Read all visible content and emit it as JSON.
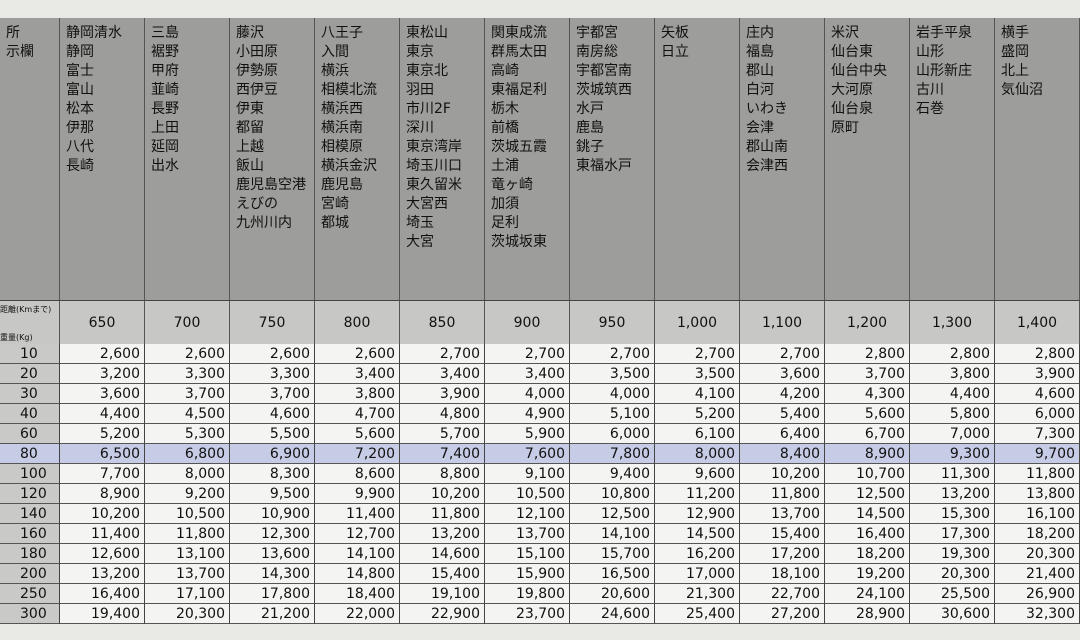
{
  "header": {
    "corner_lines": [
      "所",
      "示欄"
    ],
    "distance_label": "距離(Kmまで)",
    "weight_label": "重量(Kg)"
  },
  "columns": [
    {
      "areas": [
        "静岡清水",
        "静岡",
        "富士",
        "富山",
        "松本",
        "伊那",
        "八代",
        "長崎"
      ],
      "distance": "650"
    },
    {
      "areas": [
        "三島",
        "裾野",
        "甲府",
        "韮崎",
        "長野",
        "上田",
        "延岡",
        "出水"
      ],
      "distance": "700"
    },
    {
      "areas": [
        "藤沢",
        "小田原",
        "伊勢原",
        "西伊豆",
        "伊東",
        "都留",
        "上越",
        "飯山",
        "鹿児島空港",
        "えびの",
        "九州川内"
      ],
      "distance": "750"
    },
    {
      "areas": [
        "八王子",
        "入間",
        "横浜",
        "相模北流",
        "横浜西",
        "横浜南",
        "相模原",
        "横浜金沢",
        "鹿児島",
        "宮崎",
        "都城"
      ],
      "distance": "800"
    },
    {
      "areas": [
        "東松山",
        "東京",
        "東京北",
        "羽田",
        "市川2F",
        "深川",
        "東京湾岸",
        "埼玉川口",
        "東久留米",
        "大宮西",
        "埼玉",
        "大宮"
      ],
      "distance": "850"
    },
    {
      "areas": [
        "関東成流",
        "群馬太田",
        "高崎",
        "東福足利",
        "栃木",
        "前橋",
        "茨城五霞",
        "土浦",
        "竜ヶ崎",
        "加須",
        "足利",
        "茨城坂東"
      ],
      "distance": "900"
    },
    {
      "areas": [
        "宇都宮",
        "南房総",
        "宇都宮南",
        "茨城筑西",
        "水戸",
        "鹿島",
        "銚子",
        "東福水戸"
      ],
      "distance": "950"
    },
    {
      "areas": [
        "矢板",
        "日立"
      ],
      "distance": "1,000"
    },
    {
      "areas": [
        "庄内",
        "福島",
        "郡山",
        "白河",
        "いわき",
        "会津",
        "郡山南",
        "会津西"
      ],
      "distance": "1,100"
    },
    {
      "areas": [
        "米沢",
        "仙台東",
        "仙台中央",
        "大河原",
        "仙台泉",
        "原町"
      ],
      "distance": "1,200"
    },
    {
      "areas": [
        "岩手平泉",
        "山形",
        "山形新庄",
        "古川",
        "石巻"
      ],
      "distance": "1,300"
    },
    {
      "areas": [
        "横手",
        "盛岡",
        "北上",
        "気仙沼"
      ],
      "distance": "1,400"
    }
  ],
  "rows": [
    {
      "weight": "10",
      "prices": [
        "2,600",
        "2,600",
        "2,600",
        "2,600",
        "2,700",
        "2,700",
        "2,700",
        "2,700",
        "2,700",
        "2,800",
        "2,800",
        "2,800"
      ]
    },
    {
      "weight": "20",
      "prices": [
        "3,200",
        "3,300",
        "3,300",
        "3,400",
        "3,400",
        "3,400",
        "3,500",
        "3,500",
        "3,600",
        "3,700",
        "3,800",
        "3,900"
      ]
    },
    {
      "weight": "30",
      "prices": [
        "3,600",
        "3,700",
        "3,700",
        "3,800",
        "3,900",
        "4,000",
        "4,000",
        "4,100",
        "4,200",
        "4,300",
        "4,400",
        "4,600"
      ]
    },
    {
      "weight": "40",
      "prices": [
        "4,400",
        "4,500",
        "4,600",
        "4,700",
        "4,800",
        "4,900",
        "5,100",
        "5,200",
        "5,400",
        "5,600",
        "5,800",
        "6,000"
      ]
    },
    {
      "weight": "60",
      "prices": [
        "5,200",
        "5,300",
        "5,500",
        "5,600",
        "5,700",
        "5,900",
        "6,000",
        "6,100",
        "6,400",
        "6,700",
        "7,000",
        "7,300"
      ]
    },
    {
      "weight": "80",
      "prices": [
        "6,500",
        "6,800",
        "6,900",
        "7,200",
        "7,400",
        "7,600",
        "7,800",
        "8,000",
        "8,400",
        "8,900",
        "9,300",
        "9,700"
      ]
    },
    {
      "weight": "100",
      "prices": [
        "7,700",
        "8,000",
        "8,300",
        "8,600",
        "8,800",
        "9,100",
        "9,400",
        "9,600",
        "10,200",
        "10,700",
        "11,300",
        "11,800"
      ]
    },
    {
      "weight": "120",
      "prices": [
        "8,900",
        "9,200",
        "9,500",
        "9,900",
        "10,200",
        "10,500",
        "10,800",
        "11,200",
        "11,800",
        "12,500",
        "13,200",
        "13,800"
      ]
    },
    {
      "weight": "140",
      "prices": [
        "10,200",
        "10,500",
        "10,900",
        "11,400",
        "11,800",
        "12,100",
        "12,500",
        "12,900",
        "13,700",
        "14,500",
        "15,300",
        "16,100"
      ]
    },
    {
      "weight": "160",
      "prices": [
        "11,400",
        "11,800",
        "12,300",
        "12,700",
        "13,200",
        "13,700",
        "14,100",
        "14,500",
        "15,400",
        "16,400",
        "17,300",
        "18,200"
      ]
    },
    {
      "weight": "180",
      "prices": [
        "12,600",
        "13,100",
        "13,600",
        "14,100",
        "14,600",
        "15,100",
        "15,700",
        "16,200",
        "17,200",
        "18,200",
        "19,300",
        "20,300"
      ]
    },
    {
      "weight": "200",
      "prices": [
        "13,200",
        "13,700",
        "14,300",
        "14,800",
        "15,400",
        "15,900",
        "16,500",
        "17,000",
        "18,100",
        "19,200",
        "20,300",
        "21,400"
      ]
    },
    {
      "weight": "250",
      "prices": [
        "16,400",
        "17,100",
        "17,800",
        "18,400",
        "19,100",
        "19,800",
        "20,600",
        "21,300",
        "22,700",
        "24,100",
        "25,500",
        "26,900"
      ]
    },
    {
      "weight": "300",
      "prices": [
        "19,400",
        "20,300",
        "21,200",
        "22,000",
        "22,900",
        "23,700",
        "24,600",
        "25,400",
        "27,200",
        "28,900",
        "30,600",
        "32,300"
      ]
    }
  ]
}
